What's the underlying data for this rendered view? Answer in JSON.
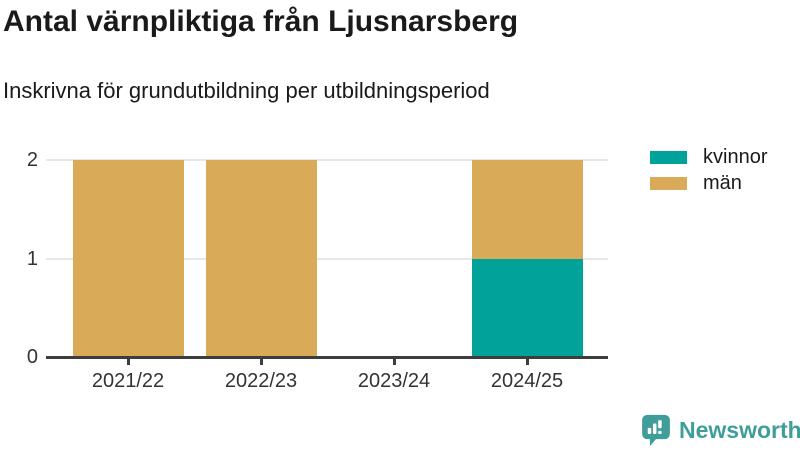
{
  "header": {
    "title": "Antal värnpliktiga från Ljusnarsberg",
    "subtitle": "Inskrivna för grundutbildning per utbildningsperiod"
  },
  "chart_data": {
    "type": "bar",
    "stacked": true,
    "title": "Antal värnpliktiga från Ljusnarsberg",
    "subtitle": "Inskrivna för grundutbildning per utbildningsperiod",
    "categories": [
      "2021/22",
      "2022/23",
      "2023/24",
      "2024/25"
    ],
    "series": [
      {
        "name": "kvinnor",
        "color": "#00A29A",
        "values": [
          0,
          0,
          0,
          1
        ]
      },
      {
        "name": "män",
        "color": "#D9AA57",
        "values": [
          2,
          2,
          0,
          1
        ]
      }
    ],
    "xlabel": "",
    "ylabel": "",
    "ylim": [
      0,
      2
    ],
    "yticks": [
      0,
      1,
      2
    ],
    "grid": true,
    "legend_position": "top-right"
  },
  "branding": {
    "label": "Newsworthy",
    "color": "#3F9E99",
    "icon": "newsworthy-speech-bubble-chart-icon"
  },
  "colors": {
    "background": "#FFFFFF",
    "title_text": "#1A1A1A",
    "axis_line": "#3D3D3D",
    "tick_label": "#333333",
    "gridline": "#E7E7E7"
  }
}
